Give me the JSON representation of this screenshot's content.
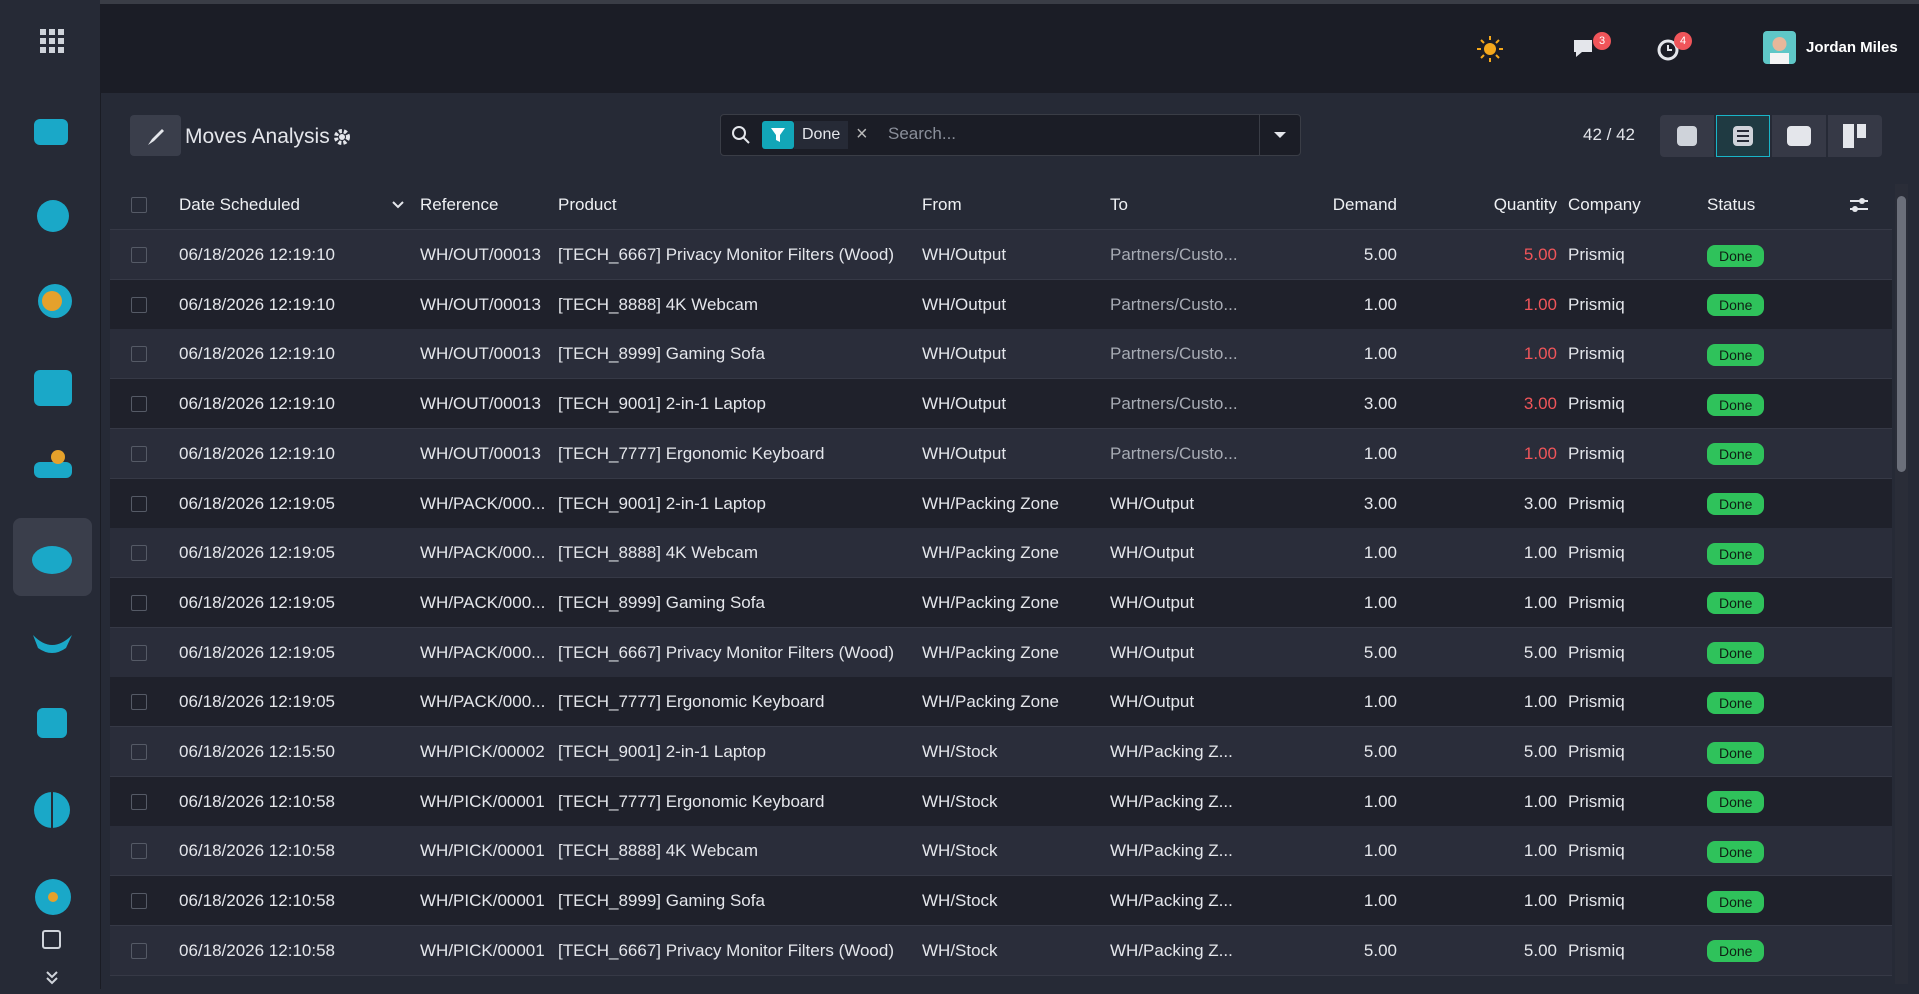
{
  "topbar": {
    "user_name": "Jordan Miles",
    "messages_badge": "3",
    "activities_badge": "4"
  },
  "control": {
    "title": "Moves Analysis",
    "filter": "Done",
    "search_placeholder": "Search...",
    "pager": "42 / 42"
  },
  "table": {
    "columns": [
      "Date Scheduled",
      "Reference",
      "Product",
      "From",
      "To",
      "Demand",
      "Quantity",
      "Company",
      "Status"
    ],
    "rows": [
      {
        "date": "06/18/2026 12:19:10",
        "reference": "WH/OUT/00013",
        "product": "[TECH_6667] Privacy Monitor Filters (Wood)",
        "from": "WH/Output",
        "to": "Partners/Custo...",
        "demand": "5.00",
        "quantity": "5.00",
        "quantity_color": "#f0555a",
        "company": "Prismiq",
        "status": "Done"
      },
      {
        "date": "06/18/2026 12:19:10",
        "reference": "WH/OUT/00013",
        "product": "[TECH_8888] 4K Webcam",
        "from": "WH/Output",
        "to": "Partners/Custo...",
        "demand": "1.00",
        "quantity": "1.00",
        "quantity_color": "#f0555a",
        "company": "Prismiq",
        "status": "Done"
      },
      {
        "date": "06/18/2026 12:19:10",
        "reference": "WH/OUT/00013",
        "product": "[TECH_8999] Gaming Sofa",
        "from": "WH/Output",
        "to": "Partners/Custo...",
        "demand": "1.00",
        "quantity": "1.00",
        "quantity_color": "#f0555a",
        "company": "Prismiq",
        "status": "Done"
      },
      {
        "date": "06/18/2026 12:19:10",
        "reference": "WH/OUT/00013",
        "product": "[TECH_9001] 2-in-1 Laptop",
        "from": "WH/Output",
        "to": "Partners/Custo...",
        "demand": "3.00",
        "quantity": "3.00",
        "quantity_color": "#f0555a",
        "company": "Prismiq",
        "status": "Done"
      },
      {
        "date": "06/18/2026 12:19:10",
        "reference": "WH/OUT/00013",
        "product": "[TECH_7777] Ergonomic Keyboard",
        "from": "WH/Output",
        "to": "Partners/Custo...",
        "demand": "1.00",
        "quantity": "1.00",
        "quantity_color": "#f0555a",
        "company": "Prismiq",
        "status": "Done"
      },
      {
        "date": "06/18/2026 12:19:05",
        "reference": "WH/PACK/000...",
        "product": "[TECH_9001] 2-in-1 Laptop",
        "from": "WH/Packing Zone",
        "to": "WH/Output",
        "demand": "3.00",
        "quantity": "3.00",
        "company": "Prismiq",
        "status": "Done"
      },
      {
        "date": "06/18/2026 12:19:05",
        "reference": "WH/PACK/000...",
        "product": "[TECH_8888] 4K Webcam",
        "from": "WH/Packing Zone",
        "to": "WH/Output",
        "demand": "1.00",
        "quantity": "1.00",
        "company": "Prismiq",
        "status": "Done"
      },
      {
        "date": "06/18/2026 12:19:05",
        "reference": "WH/PACK/000...",
        "product": "[TECH_8999] Gaming Sofa",
        "from": "WH/Packing Zone",
        "to": "WH/Output",
        "demand": "1.00",
        "quantity": "1.00",
        "company": "Prismiq",
        "status": "Done"
      },
      {
        "date": "06/18/2026 12:19:05",
        "reference": "WH/PACK/000...",
        "product": "[TECH_6667] Privacy Monitor Filters (Wood)",
        "from": "WH/Packing Zone",
        "to": "WH/Output",
        "demand": "5.00",
        "quantity": "5.00",
        "company": "Prismiq",
        "status": "Done"
      },
      {
        "date": "06/18/2026 12:19:05",
        "reference": "WH/PACK/000...",
        "product": "[TECH_7777] Ergonomic Keyboard",
        "from": "WH/Packing Zone",
        "to": "WH/Output",
        "demand": "1.00",
        "quantity": "1.00",
        "company": "Prismiq",
        "status": "Done"
      },
      {
        "date": "06/18/2026 12:15:50",
        "reference": "WH/PICK/00002",
        "product": "[TECH_9001] 2-in-1 Laptop",
        "from": "WH/Stock",
        "to": "WH/Packing Z...",
        "demand": "5.00",
        "quantity": "5.00",
        "company": "Prismiq",
        "status": "Done"
      },
      {
        "date": "06/18/2026 12:10:58",
        "reference": "WH/PICK/00001",
        "product": "[TECH_7777] Ergonomic Keyboard",
        "from": "WH/Stock",
        "to": "WH/Packing Z...",
        "demand": "1.00",
        "quantity": "1.00",
        "company": "Prismiq",
        "status": "Done"
      },
      {
        "date": "06/18/2026 12:10:58",
        "reference": "WH/PICK/00001",
        "product": "[TECH_8888] 4K Webcam",
        "from": "WH/Stock",
        "to": "WH/Packing Z...",
        "demand": "1.00",
        "quantity": "1.00",
        "company": "Prismiq",
        "status": "Done"
      },
      {
        "date": "06/18/2026 12:10:58",
        "reference": "WH/PICK/00001",
        "product": "[TECH_8999] Gaming Sofa",
        "from": "WH/Stock",
        "to": "WH/Packing Z...",
        "demand": "1.00",
        "quantity": "1.00",
        "company": "Prismiq",
        "status": "Done"
      },
      {
        "date": "06/18/2026 12:10:58",
        "reference": "WH/PICK/00001",
        "product": "[TECH_6667] Privacy Monitor Filters (Wood)",
        "from": "WH/Stock",
        "to": "WH/Packing Z...",
        "demand": "5.00",
        "quantity": "5.00",
        "company": "Prismiq",
        "status": "Done"
      }
    ]
  }
}
